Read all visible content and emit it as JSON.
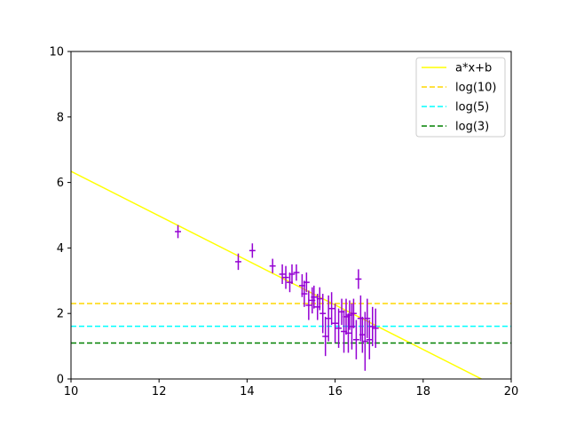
{
  "chart_data": {
    "type": "scatter",
    "title": "",
    "xlabel": "",
    "ylabel": "",
    "xlim": [
      10,
      20
    ],
    "ylim": [
      0,
      10
    ],
    "xticks": [
      "10",
      "12",
      "14",
      "16",
      "18",
      "20"
    ],
    "yticks": [
      "0",
      "2",
      "4",
      "6",
      "8",
      "10"
    ],
    "grid": false,
    "legend_position": "top-right",
    "points": {
      "color": "#9400d3",
      "data": [
        {
          "x": 12.43,
          "y": 4.5,
          "yerr": 0.2,
          "xerr": 0.07
        },
        {
          "x": 13.8,
          "y": 3.58,
          "yerr": 0.25,
          "xerr": 0.07
        },
        {
          "x": 14.12,
          "y": 3.92,
          "yerr": 0.22,
          "xerr": 0.07
        },
        {
          "x": 14.58,
          "y": 3.45,
          "yerr": 0.22,
          "xerr": 0.07
        },
        {
          "x": 14.8,
          "y": 3.2,
          "yerr": 0.3,
          "xerr": 0.07
        },
        {
          "x": 14.88,
          "y": 3.1,
          "yerr": 0.35,
          "xerr": 0.07
        },
        {
          "x": 14.97,
          "y": 2.95,
          "yerr": 0.3,
          "xerr": 0.07
        },
        {
          "x": 15.02,
          "y": 3.2,
          "yerr": 0.3,
          "xerr": 0.07
        },
        {
          "x": 15.12,
          "y": 3.25,
          "yerr": 0.25,
          "xerr": 0.07
        },
        {
          "x": 15.25,
          "y": 2.85,
          "yerr": 0.35,
          "xerr": 0.07
        },
        {
          "x": 15.3,
          "y": 2.6,
          "yerr": 0.4,
          "xerr": 0.07
        },
        {
          "x": 15.35,
          "y": 2.95,
          "yerr": 0.3,
          "xerr": 0.07
        },
        {
          "x": 15.4,
          "y": 2.25,
          "yerr": 0.45,
          "xerr": 0.07
        },
        {
          "x": 15.48,
          "y": 2.4,
          "yerr": 0.4,
          "xerr": 0.07
        },
        {
          "x": 15.52,
          "y": 2.5,
          "yerr": 0.35,
          "xerr": 0.07
        },
        {
          "x": 15.6,
          "y": 2.2,
          "yerr": 0.4,
          "xerr": 0.07
        },
        {
          "x": 15.65,
          "y": 2.45,
          "yerr": 0.35,
          "xerr": 0.07
        },
        {
          "x": 15.72,
          "y": 2.0,
          "yerr": 0.6,
          "xerr": 0.07
        },
        {
          "x": 15.78,
          "y": 1.3,
          "yerr": 0.6,
          "xerr": 0.07
        },
        {
          "x": 15.85,
          "y": 1.85,
          "yerr": 0.7,
          "xerr": 0.07
        },
        {
          "x": 15.92,
          "y": 2.15,
          "yerr": 0.5,
          "xerr": 0.07
        },
        {
          "x": 16.0,
          "y": 1.7,
          "yerr": 0.6,
          "xerr": 0.07
        },
        {
          "x": 16.08,
          "y": 1.55,
          "yerr": 0.6,
          "xerr": 0.07
        },
        {
          "x": 16.15,
          "y": 2.05,
          "yerr": 0.4,
          "xerr": 0.07
        },
        {
          "x": 16.2,
          "y": 1.45,
          "yerr": 0.65,
          "xerr": 0.07
        },
        {
          "x": 16.25,
          "y": 1.9,
          "yerr": 0.55,
          "xerr": 0.07
        },
        {
          "x": 16.3,
          "y": 1.4,
          "yerr": 0.6,
          "xerr": 0.07
        },
        {
          "x": 16.33,
          "y": 1.95,
          "yerr": 0.45,
          "xerr": 0.07
        },
        {
          "x": 16.38,
          "y": 1.6,
          "yerr": 0.7,
          "xerr": 0.07
        },
        {
          "x": 16.42,
          "y": 2.0,
          "yerr": 0.45,
          "xerr": 0.07
        },
        {
          "x": 16.48,
          "y": 1.2,
          "yerr": 0.6,
          "xerr": 0.07
        },
        {
          "x": 16.53,
          "y": 3.05,
          "yerr": 0.3,
          "xerr": 0.07
        },
        {
          "x": 16.58,
          "y": 1.85,
          "yerr": 0.7,
          "xerr": 0.07
        },
        {
          "x": 16.62,
          "y": 1.35,
          "yerr": 0.55,
          "xerr": 0.07
        },
        {
          "x": 16.68,
          "y": 1.15,
          "yerr": 0.9,
          "xerr": 0.07
        },
        {
          "x": 16.73,
          "y": 1.85,
          "yerr": 0.6,
          "xerr": 0.07
        },
        {
          "x": 16.78,
          "y": 1.2,
          "yerr": 0.6,
          "xerr": 0.07
        },
        {
          "x": 16.85,
          "y": 1.6,
          "yerr": 0.6,
          "xerr": 0.07
        },
        {
          "x": 16.92,
          "y": 1.55,
          "yerr": 0.6,
          "xerr": 0.07
        }
      ]
    },
    "lines": [
      {
        "name": "a*x+b",
        "kind": "fit",
        "color": "#ffff00",
        "dash": "solid",
        "slope": -0.68,
        "intercept": 13.14
      },
      {
        "name": "log(10)",
        "kind": "hline",
        "color": "#ffd700",
        "dash": "dashed",
        "y": 2.302585
      },
      {
        "name": "log(5)",
        "kind": "hline",
        "color": "#00ffff",
        "dash": "dashed",
        "y": 1.609438
      },
      {
        "name": "log(3)",
        "kind": "hline",
        "color": "#008000",
        "dash": "dashed",
        "y": 1.098612
      }
    ]
  }
}
